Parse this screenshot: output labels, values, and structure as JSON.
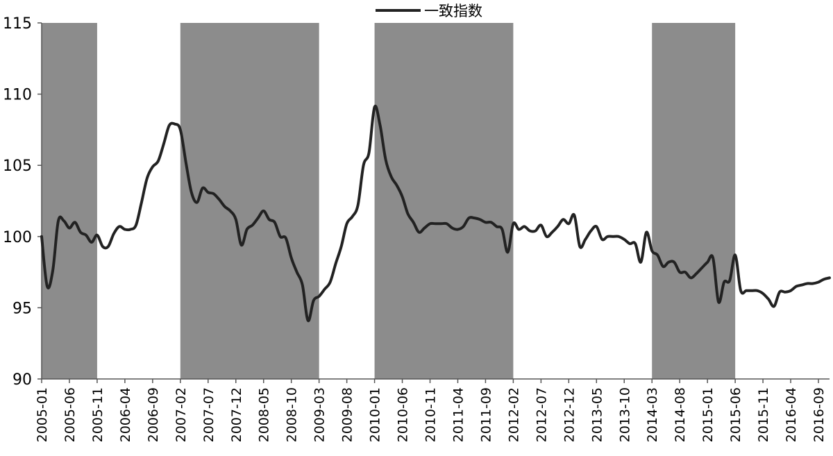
{
  "chart_data": {
    "type": "line",
    "legend": {
      "label": "一致指数",
      "placement": "top-center"
    },
    "ylim": [
      90,
      115
    ],
    "yticks": [
      90,
      95,
      100,
      105,
      110,
      115
    ],
    "xticks": [
      "2005-01",
      "2005-06",
      "2005-11",
      "2006-04",
      "2006-09",
      "2007-02",
      "2007-07",
      "2007-12",
      "2008-05",
      "2008-10",
      "2009-03",
      "2009-08",
      "2010-01",
      "2010-06",
      "2010-11",
      "2011-04",
      "2011-09",
      "2012-02",
      "2012-07",
      "2012-12",
      "2013-05",
      "2013-10",
      "2014-03",
      "2014-08",
      "2015-01",
      "2015-06",
      "2015-11",
      "2016-04",
      "2016-09"
    ],
    "shaded_periods": [
      {
        "start": "2005-01",
        "end": "2005-11"
      },
      {
        "start": "2007-02",
        "end": "2009-03"
      },
      {
        "start": "2010-01",
        "end": "2012-02"
      },
      {
        "start": "2014-03",
        "end": "2015-06"
      }
    ],
    "colors": {
      "line": "#222222",
      "shade": "#8c8c8c",
      "axis": "#555555"
    },
    "series": [
      {
        "name": "一致指数",
        "points": [
          [
            "2005-01",
            100.0
          ],
          [
            "2005-02",
            96.5
          ],
          [
            "2005-03",
            97.6
          ],
          [
            "2005-04",
            101.1
          ],
          [
            "2005-05",
            101.1
          ],
          [
            "2005-06",
            100.6
          ],
          [
            "2005-07",
            101.0
          ],
          [
            "2005-08",
            100.3
          ],
          [
            "2005-09",
            100.1
          ],
          [
            "2005-10",
            99.6
          ],
          [
            "2005-11",
            100.1
          ],
          [
            "2005-12",
            99.3
          ],
          [
            "2006-01",
            99.3
          ],
          [
            "2006-02",
            100.2
          ],
          [
            "2006-03",
            100.7
          ],
          [
            "2006-04",
            100.5
          ],
          [
            "2006-05",
            100.5
          ],
          [
            "2006-06",
            100.8
          ],
          [
            "2006-07",
            102.4
          ],
          [
            "2006-08",
            104.1
          ],
          [
            "2006-09",
            104.9
          ],
          [
            "2006-10",
            105.3
          ],
          [
            "2006-11",
            106.5
          ],
          [
            "2006-12",
            107.8
          ],
          [
            "2007-01",
            107.9
          ],
          [
            "2007-02",
            107.5
          ],
          [
            "2007-03",
            105.2
          ],
          [
            "2007-04",
            103.1
          ],
          [
            "2007-05",
            102.4
          ],
          [
            "2007-06",
            103.4
          ],
          [
            "2007-07",
            103.1
          ],
          [
            "2007-08",
            103.0
          ],
          [
            "2007-09",
            102.6
          ],
          [
            "2007-10",
            102.1
          ],
          [
            "2007-11",
            101.8
          ],
          [
            "2007-12",
            101.2
          ],
          [
            "2008-01",
            99.4
          ],
          [
            "2008-02",
            100.5
          ],
          [
            "2008-03",
            100.8
          ],
          [
            "2008-04",
            101.3
          ],
          [
            "2008-05",
            101.8
          ],
          [
            "2008-06",
            101.2
          ],
          [
            "2008-07",
            101.0
          ],
          [
            "2008-08",
            100.0
          ],
          [
            "2008-09",
            99.9
          ],
          [
            "2008-10",
            98.5
          ],
          [
            "2008-11",
            97.5
          ],
          [
            "2008-12",
            96.6
          ],
          [
            "2009-01",
            94.1
          ],
          [
            "2009-02",
            95.5
          ],
          [
            "2009-03",
            95.8
          ],
          [
            "2009-04",
            96.3
          ],
          [
            "2009-05",
            96.8
          ],
          [
            "2009-06",
            98.1
          ],
          [
            "2009-07",
            99.3
          ],
          [
            "2009-08",
            100.9
          ],
          [
            "2009-09",
            101.4
          ],
          [
            "2009-10",
            102.2
          ],
          [
            "2009-11",
            105.0
          ],
          [
            "2009-12",
            105.9
          ],
          [
            "2010-01",
            109.1
          ],
          [
            "2010-02",
            107.8
          ],
          [
            "2010-03",
            105.4
          ],
          [
            "2010-04",
            104.2
          ],
          [
            "2010-05",
            103.6
          ],
          [
            "2010-06",
            102.8
          ],
          [
            "2010-07",
            101.6
          ],
          [
            "2010-08",
            101.0
          ],
          [
            "2010-09",
            100.3
          ],
          [
            "2010-10",
            100.6
          ],
          [
            "2010-11",
            100.9
          ],
          [
            "2010-12",
            100.9
          ],
          [
            "2011-01",
            100.9
          ],
          [
            "2011-02",
            100.9
          ],
          [
            "2011-03",
            100.6
          ],
          [
            "2011-04",
            100.5
          ],
          [
            "2011-05",
            100.7
          ],
          [
            "2011-06",
            101.3
          ],
          [
            "2011-07",
            101.3
          ],
          [
            "2011-08",
            101.2
          ],
          [
            "2011-09",
            101.0
          ],
          [
            "2011-10",
            101.0
          ],
          [
            "2011-11",
            100.7
          ],
          [
            "2011-12",
            100.5
          ],
          [
            "2012-01",
            98.9
          ],
          [
            "2012-02",
            100.9
          ],
          [
            "2012-03",
            100.5
          ],
          [
            "2012-04",
            100.7
          ],
          [
            "2012-05",
            100.4
          ],
          [
            "2012-06",
            100.4
          ],
          [
            "2012-07",
            100.8
          ],
          [
            "2012-08",
            100.0
          ],
          [
            "2012-09",
            100.3
          ],
          [
            "2012-10",
            100.7
          ],
          [
            "2012-11",
            101.2
          ],
          [
            "2012-12",
            100.9
          ],
          [
            "2013-01",
            101.5
          ],
          [
            "2013-02",
            99.3
          ],
          [
            "2013-03",
            99.8
          ],
          [
            "2013-04",
            100.4
          ],
          [
            "2013-05",
            100.7
          ],
          [
            "2013-06",
            99.8
          ],
          [
            "2013-07",
            100.0
          ],
          [
            "2013-08",
            100.0
          ],
          [
            "2013-09",
            100.0
          ],
          [
            "2013-10",
            99.8
          ],
          [
            "2013-11",
            99.5
          ],
          [
            "2013-12",
            99.5
          ],
          [
            "2014-01",
            98.2
          ],
          [
            "2014-02",
            100.3
          ],
          [
            "2014-03",
            99.0
          ],
          [
            "2014-04",
            98.7
          ],
          [
            "2014-05",
            97.9
          ],
          [
            "2014-06",
            98.2
          ],
          [
            "2014-07",
            98.2
          ],
          [
            "2014-08",
            97.5
          ],
          [
            "2014-09",
            97.5
          ],
          [
            "2014-10",
            97.1
          ],
          [
            "2014-11",
            97.4
          ],
          [
            "2014-12",
            97.8
          ],
          [
            "2015-01",
            98.2
          ],
          [
            "2015-02",
            98.5
          ],
          [
            "2015-03",
            95.4
          ],
          [
            "2015-04",
            96.8
          ],
          [
            "2015-05",
            96.9
          ],
          [
            "2015-06",
            98.7
          ],
          [
            "2015-07",
            96.2
          ],
          [
            "2015-08",
            96.2
          ],
          [
            "2015-09",
            96.2
          ],
          [
            "2015-10",
            96.2
          ],
          [
            "2015-11",
            96.0
          ],
          [
            "2015-12",
            95.6
          ],
          [
            "2016-01",
            95.1
          ],
          [
            "2016-02",
            96.1
          ],
          [
            "2016-03",
            96.1
          ],
          [
            "2016-04",
            96.2
          ],
          [
            "2016-05",
            96.5
          ],
          [
            "2016-06",
            96.6
          ],
          [
            "2016-07",
            96.7
          ],
          [
            "2016-08",
            96.7
          ],
          [
            "2016-09",
            96.8
          ],
          [
            "2016-10",
            97.0
          ],
          [
            "2016-11",
            97.1
          ]
        ]
      }
    ]
  }
}
